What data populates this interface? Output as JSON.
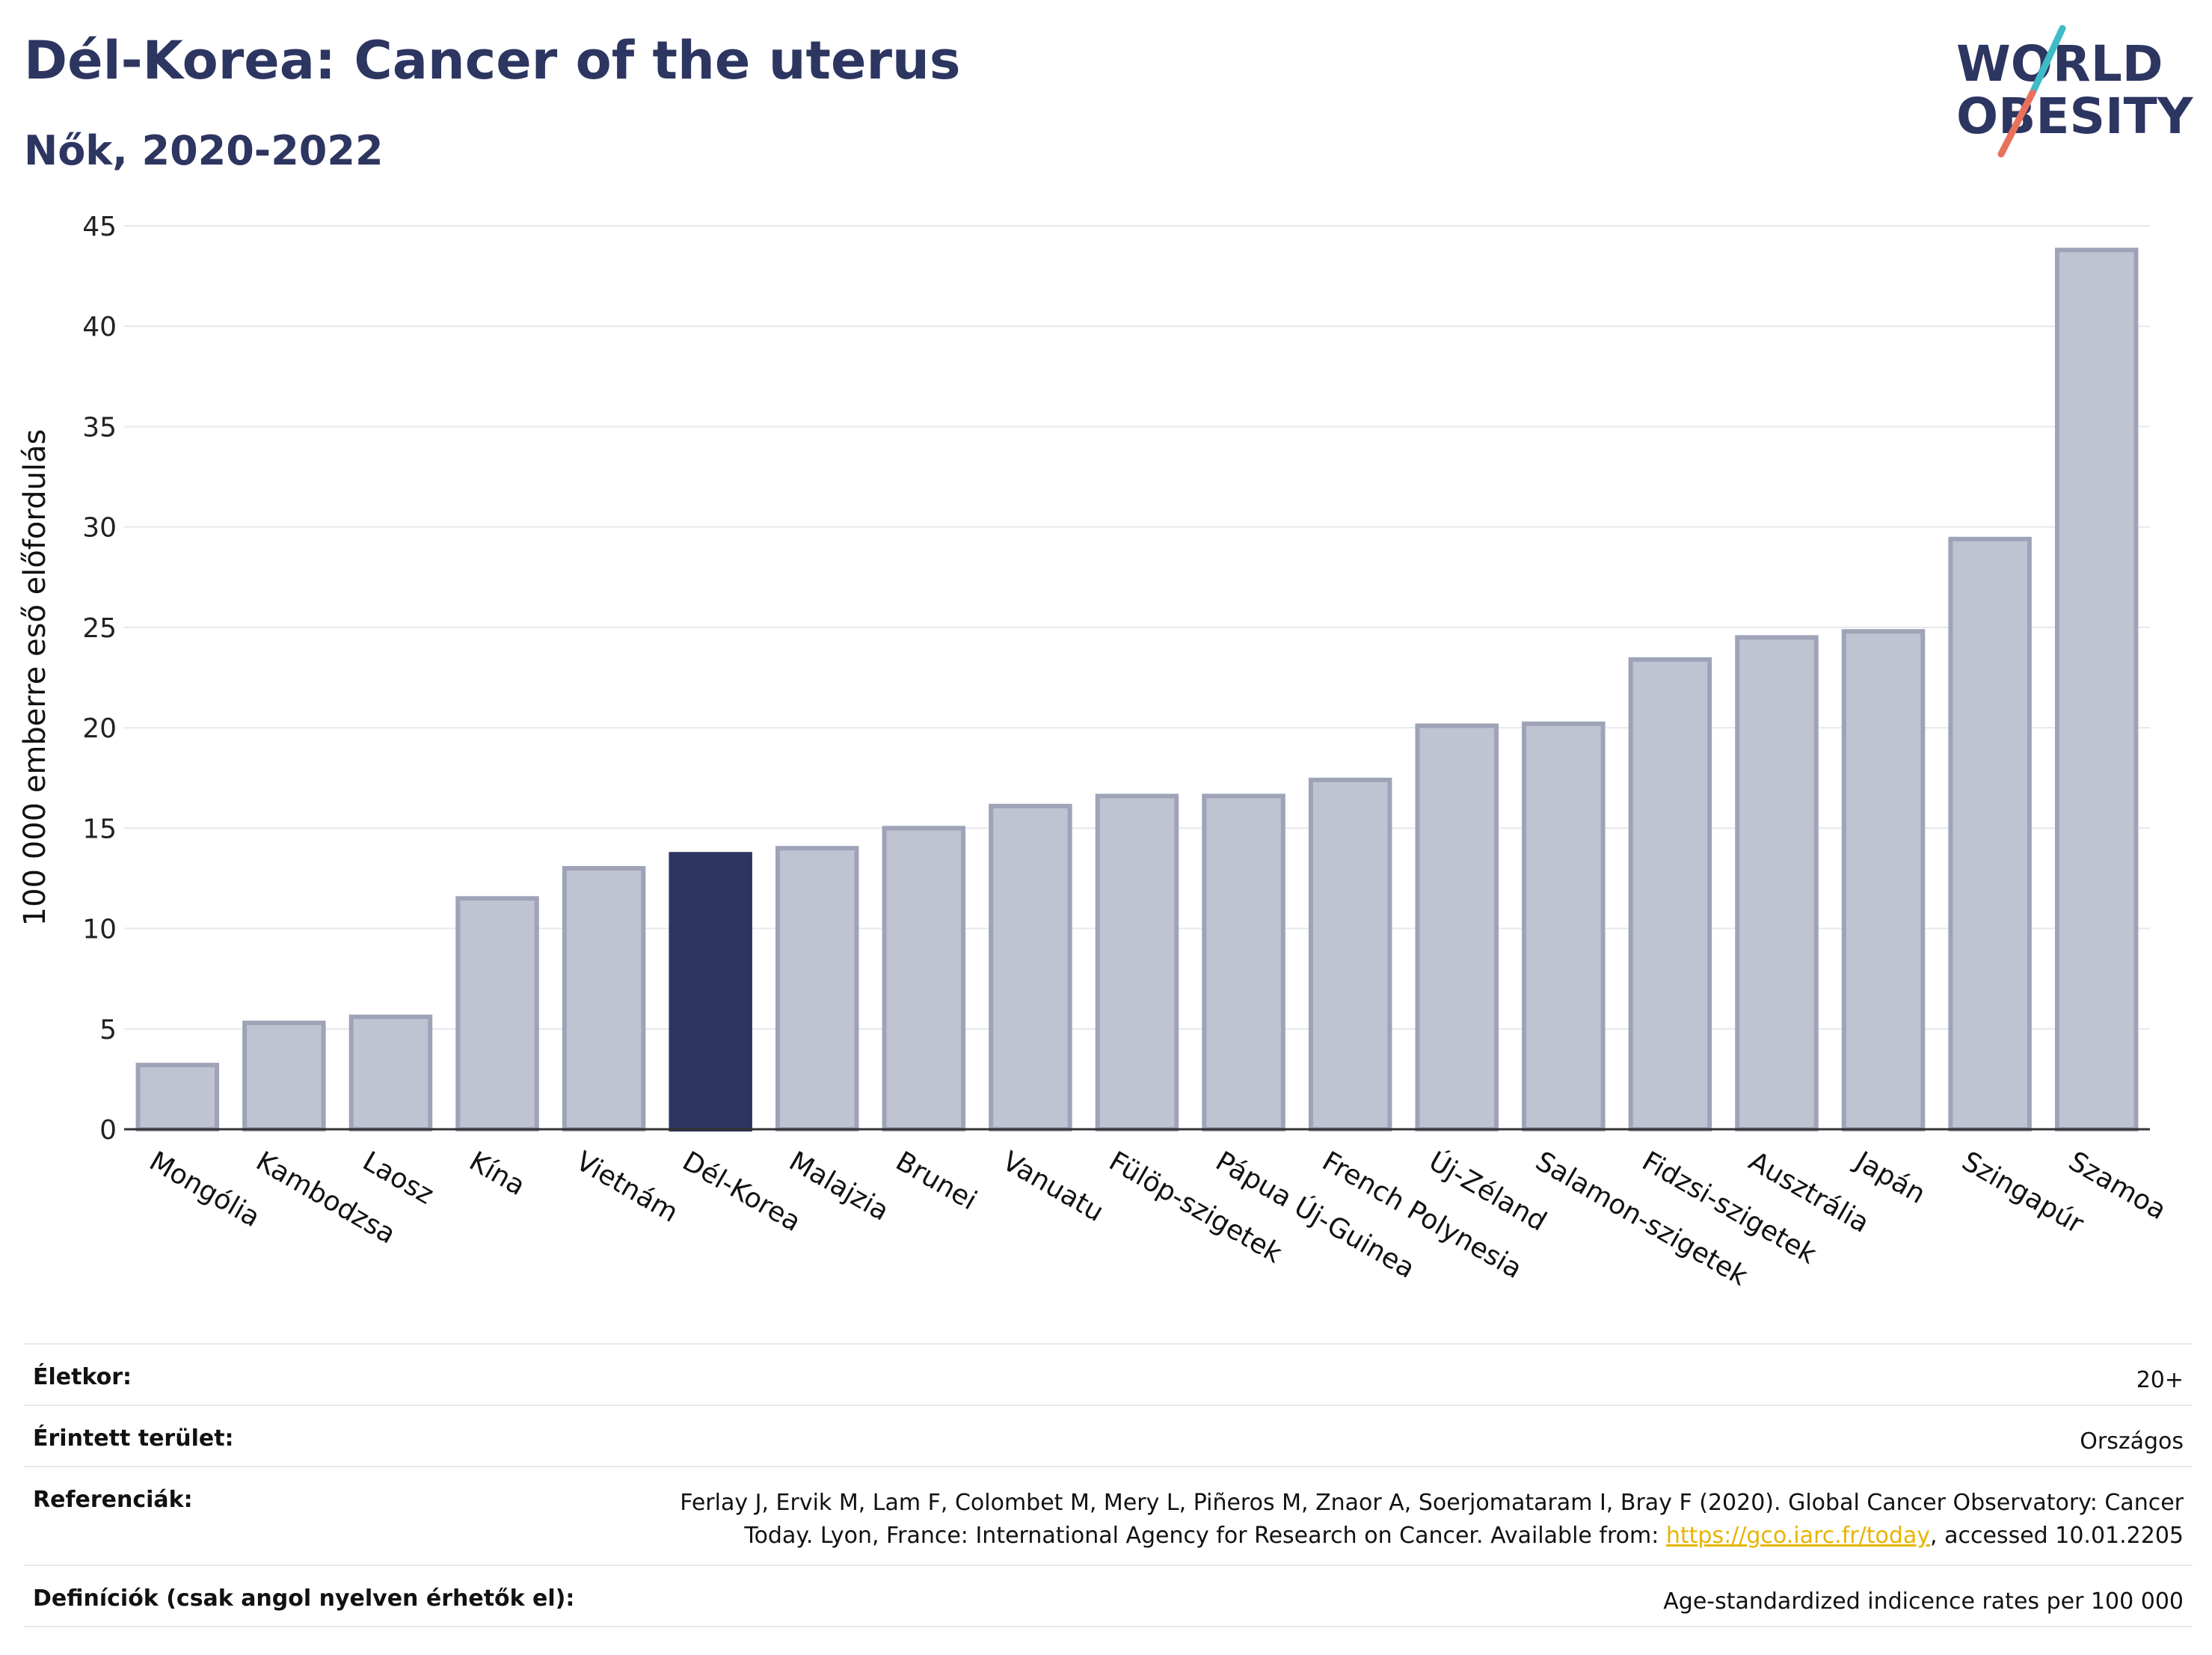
{
  "header": {
    "title": "Dél-Korea: Cancer of the uterus",
    "subtitle": "Nők, 2020-2022"
  },
  "logo": {
    "line1": "WORLD",
    "line2": "OBESITY",
    "slash_colors": [
      "#3dbcc7",
      "#e8715b"
    ],
    "text_color": "#2d3561"
  },
  "chart_data": {
    "type": "bar",
    "title": "Dél-Korea: Cancer of the uterus",
    "subtitle": "Nők, 2020-2022",
    "xlabel": "",
    "ylabel": "100 000 emberre eső előfordulás",
    "ylim": [
      0,
      45
    ],
    "yticks": [
      0,
      5,
      10,
      15,
      20,
      25,
      30,
      35,
      40,
      45
    ],
    "grid": true,
    "highlight": "Dél-Korea",
    "colors": {
      "highlight": "#2d3561",
      "default_fill": "#c0c3d1",
      "default_stroke": "#9ea3b8"
    },
    "categories": [
      "Mongólia",
      "Kambodzsa",
      "Laosz",
      "Kína",
      "Vietnám",
      "Dél-Korea",
      "Malajzia",
      "Brunei",
      "Vanuatu",
      "Fülöp-szigetek",
      "Pápua Új-Guinea",
      "French Polynesia",
      "Új-Zéland",
      "Salamon-szigetek",
      "Fidzsi-szigetek",
      "Ausztrália",
      "Japán",
      "Szingapúr",
      "Szamoa"
    ],
    "values": [
      3.2,
      5.3,
      5.6,
      11.5,
      13.0,
      13.7,
      14.0,
      15.0,
      16.1,
      16.6,
      16.6,
      17.4,
      20.1,
      20.2,
      23.4,
      24.5,
      24.8,
      29.4,
      43.8
    ]
  },
  "info": [
    {
      "key": "Életkor:",
      "value": "20+"
    },
    {
      "key": "Érintett terület:",
      "value": "Országos"
    },
    {
      "key": "Referenciák:",
      "value_line1": "Ferlay J, Ervik M, Lam F, Colombet M, Mery L, Piñeros M, Znaor A, Soerjomataram I, Bray F (2020). Global Cancer Observatory: Cancer",
      "value_line2_pre": "Today. Lyon, France: International Agency for Research on Cancer. Available from: ",
      "link": "https://gco.iarc.fr/today",
      "value_line2_post": ", accessed 10.01.2205"
    },
    {
      "key": "Definíciók (csak angol nyelven érhetők el):",
      "value": "Age-standardized indicence rates per 100 000"
    }
  ]
}
